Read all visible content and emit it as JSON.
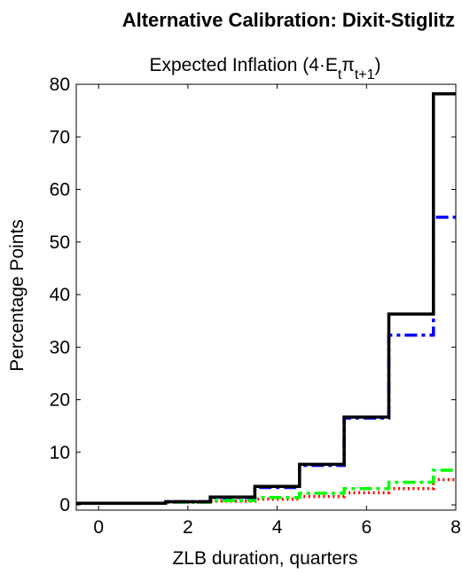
{
  "chart_data": {
    "type": "line",
    "suptitle": "Alternative Calibration: Dixit-Stiglitz",
    "title": {
      "prefix": "Expected Inflation (4·E",
      "sub1": "t",
      "pi": "π",
      "sub2": "t+1",
      "suffix": ")"
    },
    "xlabel": "ZLB duration, quarters",
    "ylabel": "Percentage Points",
    "xlim": [
      -0.5,
      8
    ],
    "ylim": [
      -1,
      80
    ],
    "xticks": [
      0,
      2,
      4,
      6,
      8
    ],
    "yticks": [
      0,
      10,
      20,
      30,
      40,
      50,
      60,
      70,
      80
    ],
    "step": "centered",
    "x": [
      0,
      1,
      2,
      3,
      4,
      5,
      6,
      7,
      8
    ],
    "series": [
      {
        "color": "#000000",
        "dash": "solid",
        "values": [
          0.3,
          0.3,
          0.6,
          1.5,
          3.5,
          7.7,
          16.7,
          36.3,
          78.2
        ]
      },
      {
        "color": "#0000ff",
        "dash": "dashdot",
        "values": [
          0.3,
          0.3,
          0.6,
          1.4,
          3.3,
          7.5,
          16.5,
          32.3,
          54.7
        ]
      },
      {
        "color": "#00ff00",
        "dash": "dashdot",
        "values": [
          0.3,
          0.3,
          0.5,
          0.8,
          1.4,
          2.2,
          3.1,
          4.3,
          6.6
        ]
      },
      {
        "color": "#ff0000",
        "dash": "dotted",
        "values": [
          0.3,
          0.3,
          0.5,
          0.7,
          1.1,
          1.6,
          2.3,
          3.1,
          4.8
        ]
      }
    ]
  }
}
